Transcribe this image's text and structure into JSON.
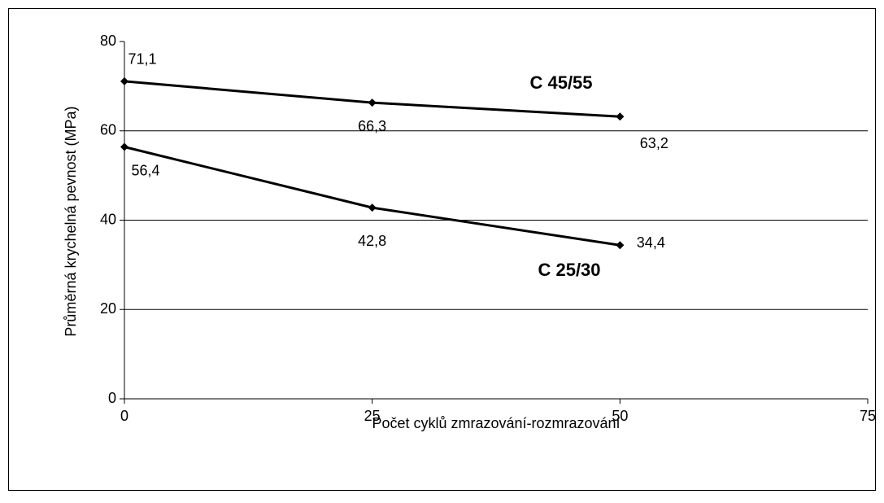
{
  "chart_data": {
    "type": "line",
    "x_label": "Počet cyklů zmrazování-rozmrazování",
    "y_label": "Průměrná krychelná pevnost (MPa)",
    "x": [
      0,
      25,
      50
    ],
    "series": [
      {
        "name": "C 45/55",
        "color": "#000000",
        "values": [
          71.1,
          66.3,
          63.2
        ],
        "value_labels": [
          "71,1",
          "66,3",
          "63,2"
        ]
      },
      {
        "name": "C 25/30",
        "color": "#000000",
        "values": [
          56.4,
          42.8,
          34.4
        ],
        "value_labels": [
          "56,4",
          "42,8",
          "34,4"
        ]
      }
    ],
    "xlim": [
      0,
      75
    ],
    "xticks": [
      0,
      25,
      50,
      75
    ],
    "ylim": [
      0,
      80
    ],
    "yticks": [
      0,
      20,
      40,
      60,
      80
    ],
    "grid": true
  }
}
